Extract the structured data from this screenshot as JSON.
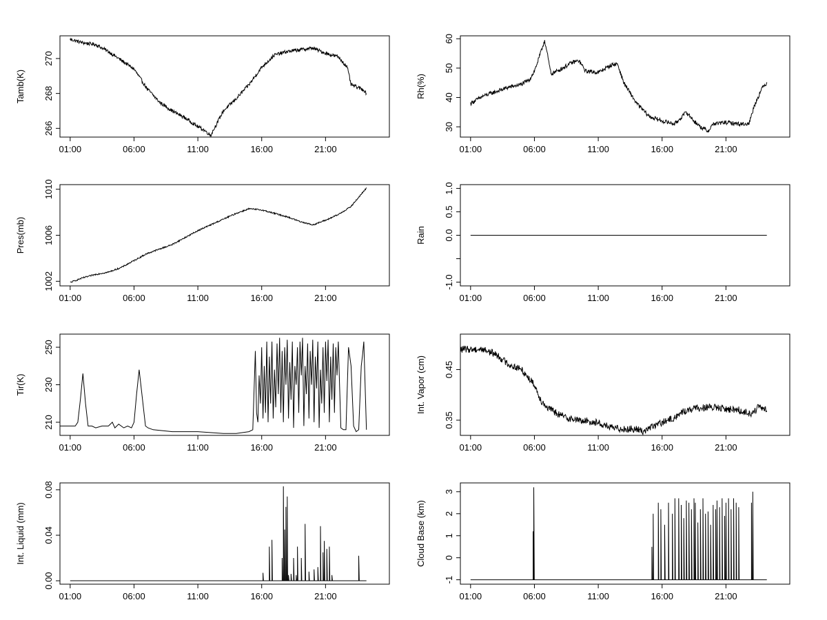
{
  "chart_data": [
    {
      "type": "line",
      "ylabel": "Tamb(K)",
      "yticks": [
        266,
        268,
        270
      ],
      "ylim": [
        265.5,
        271.3
      ],
      "xlim": [
        -0.8,
        25.0
      ],
      "xticks": [
        0,
        5,
        10,
        15,
        20
      ],
      "xtick_labels": [
        "01:00",
        "06:00",
        "11:00",
        "16:00",
        "21:00"
      ],
      "grid": false,
      "style": "noisy",
      "noise": 0.1,
      "series": [
        {
          "x": [
            0,
            1,
            2,
            3,
            4,
            5,
            6,
            7,
            8,
            9,
            10,
            10.5,
            11,
            11.5,
            12,
            13,
            14,
            15,
            16,
            17,
            18,
            19,
            20,
            21,
            21.7,
            22,
            23,
            23.2
          ],
          "y": [
            271.1,
            270.9,
            270.8,
            270.4,
            269.9,
            269.4,
            268.3,
            267.5,
            267,
            266.6,
            266.1,
            265.9,
            265.6,
            266.3,
            267,
            267.7,
            268.5,
            269.5,
            270.2,
            270.4,
            270.5,
            270.6,
            270.3,
            270.1,
            269.5,
            268.5,
            268.2,
            268
          ]
        }
      ]
    },
    {
      "type": "line",
      "ylabel": "Rh(%)",
      "yticks": [
        30,
        40,
        50,
        60
      ],
      "ylim": [
        26.5,
        61
      ],
      "xlim": [
        -0.8,
        25.0
      ],
      "xticks": [
        0,
        5,
        10,
        15,
        20
      ],
      "xtick_labels": [
        "01:00",
        "06:00",
        "11:00",
        "16:00",
        "21:00"
      ],
      "grid": false,
      "style": "noisy",
      "noise": 0.7,
      "series": [
        {
          "x": [
            0,
            1,
            2,
            3,
            4,
            4.6,
            5,
            5.4,
            5.8,
            6,
            6.3,
            7,
            8,
            8.5,
            9,
            10,
            11,
            11.5,
            12,
            13,
            14,
            15,
            16,
            16.9,
            17.5,
            18,
            18.6,
            19,
            20,
            21,
            21.8,
            22.2,
            22.8,
            23.2
          ],
          "y": [
            38,
            40.5,
            42,
            43.5,
            44.5,
            46,
            49,
            54,
            59.5,
            55,
            48,
            49.5,
            52,
            52.5,
            49,
            48.5,
            51,
            51.5,
            45,
            38,
            33.5,
            32,
            31,
            35,
            32,
            30,
            28.5,
            31,
            31.5,
            31,
            31,
            37,
            43,
            45
          ]
        }
      ]
    },
    {
      "type": "line",
      "ylabel": "Pres(mb)",
      "yticks": [
        1002,
        1006,
        1010
      ],
      "ylim": [
        1001.6,
        1010.4
      ],
      "xlim": [
        -0.8,
        25.0
      ],
      "xticks": [
        0,
        5,
        10,
        15,
        20
      ],
      "xtick_labels": [
        "01:00",
        "06:00",
        "11:00",
        "16:00",
        "21:00"
      ],
      "grid": false,
      "style": "noisy",
      "noise": 0.06,
      "series": [
        {
          "x": [
            0,
            1,
            2,
            3,
            4,
            5,
            6,
            7,
            8,
            9,
            10,
            11,
            12,
            13,
            14,
            15,
            16,
            17,
            18,
            19,
            20,
            21,
            22,
            23.2
          ],
          "y": [
            1001.9,
            1002.3,
            1002.6,
            1002.8,
            1003.2,
            1003.8,
            1004.4,
            1004.8,
            1005.2,
            1005.8,
            1006.4,
            1006.9,
            1007.4,
            1007.9,
            1008.3,
            1008.2,
            1007.9,
            1007.6,
            1007.2,
            1006.9,
            1007.3,
            1007.8,
            1008.5,
            1010.1
          ]
        }
      ]
    },
    {
      "type": "line",
      "ylabel": "Rain",
      "yticks": [
        -1.0,
        -0.5,
        0.0,
        0.5,
        1.0
      ],
      "ytick_labels": [
        "-1.0",
        "",
        "0.0",
        "0.5",
        "1.0"
      ],
      "ylim": [
        -1.08,
        1.08
      ],
      "xlim": [
        -0.8,
        25.0
      ],
      "xticks": [
        0,
        5,
        10,
        15,
        20
      ],
      "xtick_labels": [
        "01:00",
        "06:00",
        "11:00",
        "16:00",
        "21:00"
      ],
      "grid": false,
      "style": "plain",
      "series": [
        {
          "x": [
            0,
            23.2
          ],
          "y": [
            0,
            0
          ]
        }
      ]
    },
    {
      "type": "line",
      "ylabel": "Tir(K)",
      "yticks": [
        210,
        230,
        250
      ],
      "ylim": [
        203,
        257
      ],
      "xlim": [
        -0.8,
        25.0
      ],
      "xticks": [
        0,
        5,
        10,
        15,
        20
      ],
      "xtick_labels": [
        "01:00",
        "06:00",
        "11:00",
        "16:00",
        "21:00"
      ],
      "grid": false,
      "style": "plain",
      "series": [
        {
          "x": [
            -0.8,
            0.2,
            0.4,
            0.6,
            0.8,
            1.0,
            1.2,
            1.4,
            1.7,
            2,
            2.5,
            3,
            3.3,
            3.5,
            3.8,
            4.2,
            4.5,
            4.8,
            5,
            5.2,
            5.4,
            5.6,
            5.9,
            6.1,
            6.5,
            8,
            10,
            12,
            13,
            14,
            14.3,
            14.5,
            14.6,
            14.7,
            14.8,
            14.9,
            15.0,
            15.1,
            15.2,
            15.3,
            15.4,
            15.5,
            15.6,
            15.7,
            15.8,
            15.9,
            16,
            16.1,
            16.2,
            16.3,
            16.4,
            16.5,
            16.6,
            16.7,
            16.8,
            16.9,
            17,
            17.1,
            17.2,
            17.3,
            17.4,
            17.5,
            17.6,
            17.7,
            17.8,
            17.9,
            18,
            18.1,
            18.2,
            18.3,
            18.4,
            18.5,
            18.6,
            18.7,
            18.8,
            18.9,
            19,
            19.1,
            19.2,
            19.3,
            19.4,
            19.5,
            19.6,
            19.7,
            19.8,
            19.9,
            20,
            20.1,
            20.2,
            20.3,
            20.4,
            20.5,
            20.6,
            20.7,
            20.8,
            20.9,
            21,
            21.1,
            21.2,
            21.4,
            21.6,
            21.8,
            22,
            22.2,
            22.4,
            22.6,
            22.8,
            22.9,
            23,
            23.2
          ],
          "y": [
            208,
            208,
            208,
            210,
            222,
            236,
            220,
            208,
            208,
            207,
            208,
            208,
            210,
            207,
            209,
            207,
            208,
            207,
            210,
            225,
            238,
            226,
            208,
            207,
            206,
            205,
            205,
            204,
            204,
            205,
            206,
            248,
            215,
            210,
            235,
            220,
            250,
            212,
            240,
            215,
            253,
            210,
            245,
            220,
            253,
            212,
            238,
            218,
            252,
            225,
            255,
            215,
            248,
            210,
            250,
            230,
            254,
            212,
            242,
            222,
            253,
            207,
            240,
            230,
            250,
            215,
            253,
            235,
            255,
            208,
            240,
            225,
            252,
            212,
            248,
            230,
            254,
            210,
            245,
            228,
            253,
            207,
            238,
            220,
            250,
            215,
            253,
            232,
            254,
            210,
            245,
            222,
            252,
            215,
            250,
            235,
            253,
            230,
            207,
            206,
            206,
            250,
            240,
            208,
            205,
            206,
            240,
            246,
            253,
            206
          ]
        }
      ]
    },
    {
      "type": "line",
      "ylabel": "Int. Vapor (cm)",
      "yticks": [
        0.35,
        0.45
      ],
      "ylim": [
        0.32,
        0.52
      ],
      "xlim": [
        -0.8,
        25.0
      ],
      "xticks": [
        0,
        5,
        10,
        15,
        20
      ],
      "xtick_labels": [
        "01:00",
        "06:00",
        "11:00",
        "16:00",
        "21:00"
      ],
      "grid": false,
      "style": "noisy",
      "noise": 0.007,
      "series": [
        {
          "x": [
            -0.8,
            0,
            1,
            2,
            3,
            4,
            4.5,
            5,
            5.5,
            6,
            7,
            8,
            9,
            10,
            10.5,
            11,
            12,
            13,
            13.6,
            14,
            15,
            16,
            16.5,
            17,
            18,
            19,
            20,
            21,
            22,
            22.5,
            23.2
          ],
          "y": [
            0.49,
            0.49,
            0.49,
            0.48,
            0.46,
            0.45,
            0.435,
            0.42,
            0.39,
            0.375,
            0.36,
            0.352,
            0.348,
            0.345,
            0.34,
            0.335,
            0.333,
            0.332,
            0.328,
            0.335,
            0.345,
            0.355,
            0.365,
            0.37,
            0.375,
            0.375,
            0.372,
            0.37,
            0.362,
            0.375,
            0.37
          ]
        }
      ]
    },
    {
      "type": "line",
      "ylabel": "Int. Liquid (mm)",
      "yticks": [
        0.0,
        0.04,
        0.08
      ],
      "ytick_labels": [
        "0.00",
        "0.04",
        "0.08"
      ],
      "ylim": [
        -0.003,
        0.086
      ],
      "xlim": [
        -0.8,
        25.0
      ],
      "xticks": [
        0,
        5,
        10,
        15,
        20
      ],
      "xtick_labels": [
        "01:00",
        "06:00",
        "11:00",
        "16:00",
        "21:00"
      ],
      "grid": false,
      "style": "spikes",
      "baseline": 0,
      "series": [
        {
          "x": [
            0,
            14.2,
            15.1,
            15.6,
            15.8,
            16.6,
            16.7,
            16.8,
            16.9,
            17.0,
            17.1,
            17.3,
            17.5,
            17.7,
            17.8,
            18.1,
            18.4,
            18.7,
            19.1,
            19.4,
            19.6,
            19.8,
            19.9,
            20.1,
            20.3,
            20.5,
            22.6,
            23.2
          ],
          "y": [
            0,
            0,
            0.007,
            0.03,
            0.036,
            0.02,
            0.083,
            0.045,
            0.065,
            0.074,
            0.005,
            0.006,
            0.02,
            0.005,
            0.03,
            0.02,
            0.05,
            0.008,
            0.01,
            0.012,
            0.048,
            0.025,
            0.035,
            0.028,
            0.03,
            0.005,
            0.022,
            0
          ]
        }
      ]
    },
    {
      "type": "line",
      "ylabel": "Cloud Base (km)",
      "yticks": [
        -1,
        0,
        1,
        2,
        3
      ],
      "ylim": [
        -1.2,
        3.4
      ],
      "xlim": [
        -0.8,
        25.0
      ],
      "xticks": [
        0,
        5,
        10,
        15,
        20
      ],
      "xtick_labels": [
        "01:00",
        "06:00",
        "11:00",
        "16:00",
        "21:00"
      ],
      "grid": false,
      "style": "spikes",
      "baseline": -1,
      "series": [
        {
          "x": [
            0,
            4.9,
            4.95,
            14.2,
            14.3,
            14.7,
            14.9,
            15.2,
            15.5,
            15.8,
            16.0,
            16.3,
            16.5,
            16.7,
            16.9,
            17.1,
            17.3,
            17.5,
            17.6,
            17.8,
            18.0,
            18.2,
            18.4,
            18.6,
            18.8,
            19.0,
            19.2,
            19.3,
            19.5,
            19.7,
            19.9,
            20.0,
            20.2,
            20.4,
            20.6,
            20.8,
            21.0,
            22.0,
            22.1,
            23.2
          ],
          "y": [
            -1,
            1.2,
            3.2,
            0.5,
            2.0,
            2.5,
            2.2,
            1.5,
            2.5,
            2.0,
            2.7,
            2.7,
            2.4,
            1.8,
            2.6,
            2.5,
            2.2,
            2.7,
            2.5,
            1.6,
            2.2,
            2.7,
            2.0,
            2.1,
            1.5,
            2.4,
            2.2,
            2.6,
            2.3,
            2.7,
            1.9,
            2.5,
            2.7,
            2.2,
            2.7,
            2.5,
            2.3,
            2.5,
            3.0,
            -1
          ]
        }
      ]
    }
  ]
}
